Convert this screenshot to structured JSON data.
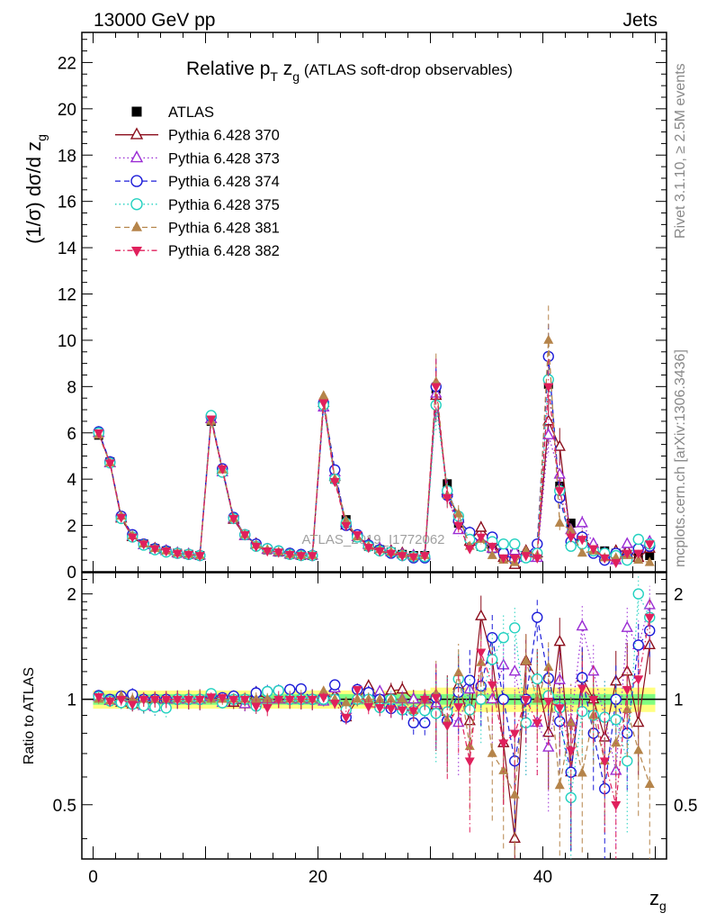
{
  "header": {
    "energy_label": "13000 GeV pp",
    "category_label": "Jets"
  },
  "side_texts": {
    "rivet": "Rivet 3.1.10, ≥ 2.5M events",
    "mcplots": "mcplots.cern.ch [arXiv:1306.3436]"
  },
  "chart_data": [
    {
      "panel": "main",
      "type": "line",
      "title_main": "Relative p",
      "title_sub_T": "T",
      "title_mid": " z",
      "title_sub_g": "g",
      "title_paren": " (ATLAS soft-drop observables)",
      "ylabel": "(1/σ) dσ/d z",
      "ylabel_sub": "g",
      "watermark": "ATLAS_2019_I1772062",
      "ylim": [
        0,
        23.3
      ],
      "xlim": [
        -1,
        51
      ],
      "grid": false,
      "legend_placement": "top-left",
      "y_ticks": [
        0,
        2,
        4,
        6,
        8,
        10,
        12,
        14,
        16,
        18,
        20,
        22
      ],
      "x": [
        0.5,
        1.5,
        2.5,
        3.5,
        4.5,
        5.5,
        6.5,
        7.5,
        8.5,
        9.5,
        10.5,
        11.5,
        12.5,
        13.5,
        14.5,
        15.5,
        16.5,
        17.5,
        18.5,
        19.5,
        20.5,
        21.5,
        22.5,
        23.5,
        24.5,
        25.5,
        26.5,
        27.5,
        28.5,
        29.5,
        30.5,
        31.5,
        32.5,
        33.5,
        34.5,
        35.5,
        36.5,
        37.5,
        38.5,
        39.5,
        40.5,
        41.5,
        42.5,
        43.5,
        44.5,
        45.5,
        46.5,
        47.5,
        48.5,
        49.5
      ],
      "series": [
        {
          "name": "ATLAS",
          "color": "#000000",
          "marker": "square-filled",
          "dash": "none",
          "values": [
            5.9,
            4.75,
            2.35,
            1.55,
            1.2,
            1.0,
            0.9,
            0.8,
            0.75,
            0.7,
            6.5,
            4.4,
            2.3,
            1.6,
            1.15,
            0.95,
            0.85,
            0.75,
            0.7,
            0.7,
            7.2,
            4.0,
            2.25,
            1.5,
            1.1,
            0.95,
            0.85,
            0.75,
            0.7,
            0.7,
            7.9,
            3.8,
            2.1,
            1.5,
            1.1,
            1.0,
            0.8,
            0.75,
            0.7,
            0.7,
            8.1,
            3.7,
            2.1,
            1.3,
            1.0,
            0.9,
            0.8,
            0.75,
            0.7,
            0.7
          ]
        },
        {
          "name": "Pythia 6.428 370",
          "color": "#8b0d1c",
          "marker": "triangle-open",
          "dash": "none",
          "values": [
            6.0,
            4.7,
            2.3,
            1.5,
            1.15,
            1.0,
            0.9,
            0.8,
            0.75,
            0.7,
            6.6,
            4.4,
            2.25,
            1.55,
            1.2,
            0.95,
            0.85,
            0.75,
            0.7,
            0.7,
            7.3,
            4.1,
            2.0,
            1.5,
            1.2,
            0.95,
            0.9,
            0.8,
            0.7,
            0.7,
            7.6,
            3.5,
            2.3,
            1.3,
            1.9,
            1.3,
            0.6,
            0.3,
            0.9,
            0.8,
            6.5,
            5.4,
            1.3,
            1.5,
            1.0,
            0.7,
            0.9,
            0.9,
            0.6,
            1.0
          ]
        },
        {
          "name": "Pythia 6.428 373",
          "color": "#9a2bd4",
          "marker": "triangle-open",
          "dash": "dot",
          "values": [
            6.0,
            4.7,
            2.35,
            1.55,
            1.15,
            0.95,
            0.9,
            0.8,
            0.75,
            0.7,
            6.6,
            4.3,
            2.3,
            1.55,
            1.15,
            0.95,
            0.85,
            0.75,
            0.7,
            0.7,
            7.1,
            4.3,
            2.1,
            1.5,
            1.15,
            1.0,
            0.85,
            0.75,
            0.7,
            0.7,
            7.7,
            3.4,
            1.8,
            1.6,
            1.2,
            1.0,
            1.0,
            0.9,
            0.6,
            0.6,
            5.9,
            4.2,
            1.8,
            2.1,
            1.2,
            0.8,
            0.5,
            1.2,
            1.0,
            1.3
          ]
        },
        {
          "name": "Pythia 6.428 374",
          "color": "#1c1cd8",
          "marker": "circle-open",
          "dash": "dash",
          "values": [
            6.05,
            4.75,
            2.4,
            1.6,
            1.2,
            1.0,
            0.9,
            0.8,
            0.75,
            0.7,
            6.7,
            4.45,
            2.35,
            1.6,
            1.2,
            1.0,
            0.9,
            0.8,
            0.75,
            0.7,
            7.3,
            4.4,
            2.0,
            1.6,
            1.15,
            0.95,
            0.8,
            0.7,
            0.6,
            0.6,
            8.0,
            3.3,
            2.2,
            1.7,
            1.2,
            1.5,
            0.8,
            0.5,
            0.7,
            1.2,
            9.3,
            3.2,
            1.3,
            1.5,
            0.8,
            0.5,
            0.8,
            0.6,
            1.0,
            1.1
          ]
        },
        {
          "name": "Pythia 6.428 375",
          "color": "#22d1c0",
          "marker": "circle-open",
          "dash": "dot",
          "values": [
            6.0,
            4.7,
            2.3,
            1.5,
            1.15,
            0.95,
            0.85,
            0.8,
            0.75,
            0.7,
            6.75,
            4.3,
            2.3,
            1.6,
            1.1,
            1.0,
            0.9,
            0.75,
            0.7,
            0.7,
            7.2,
            4.0,
            2.1,
            1.5,
            1.1,
            0.9,
            0.85,
            0.7,
            0.65,
            0.65,
            7.2,
            3.5,
            2.4,
            1.4,
            1.1,
            1.3,
            1.2,
            1.2,
            0.6,
            0.8,
            8.3,
            3.5,
            1.1,
            1.2,
            0.9,
            0.8,
            0.7,
            0.5,
            1.4,
            1.2
          ]
        },
        {
          "name": "Pythia 6.428 381",
          "color": "#b5844a",
          "marker": "triangle-filled",
          "dash": "dash",
          "values": [
            5.9,
            4.7,
            2.4,
            1.55,
            1.2,
            1.0,
            0.9,
            0.8,
            0.75,
            0.7,
            6.5,
            4.4,
            2.3,
            1.6,
            1.15,
            0.95,
            0.85,
            0.75,
            0.7,
            0.7,
            7.6,
            4.0,
            2.2,
            1.5,
            1.1,
            0.95,
            0.85,
            0.75,
            0.65,
            0.7,
            8.2,
            3.3,
            2.5,
            1.1,
            1.4,
            0.7,
            0.5,
            0.4,
            0.9,
            0.7,
            10.0,
            2.1,
            1.8,
            0.8,
            0.9,
            0.6,
            0.6,
            0.7,
            0.5,
            0.4
          ]
        },
        {
          "name": "Pythia 6.428 382",
          "color": "#e0205c",
          "marker": "triangle-down-filled",
          "dash": "dashdot",
          "values": [
            6.0,
            4.7,
            2.35,
            1.5,
            1.2,
            1.0,
            0.9,
            0.8,
            0.75,
            0.7,
            6.6,
            4.45,
            2.3,
            1.6,
            1.1,
            0.9,
            0.85,
            0.75,
            0.7,
            0.7,
            7.3,
            3.9,
            2.0,
            1.6,
            1.05,
            0.9,
            0.8,
            0.7,
            0.65,
            0.7,
            8.0,
            3.2,
            2.0,
            1.0,
            1.5,
            1.1,
            0.6,
            0.6,
            0.7,
            0.6,
            8.0,
            3.5,
            1.5,
            1.4,
            1.0,
            0.6,
            0.4,
            0.8,
            0.8,
            1.2
          ]
        }
      ]
    },
    {
      "panel": "ratio",
      "type": "line",
      "ylabel": "Ratio to ATLAS",
      "xlabel": "z",
      "xlabel_sub": "g",
      "ylim": [
        0.35,
        2.3
      ],
      "xlim": [
        -1,
        51
      ],
      "grid": false,
      "reference_line": 1,
      "y_ticks_left": [
        "0.5",
        "1",
        "2"
      ],
      "y_ticks_right": [
        "0.5",
        "1",
        "2"
      ],
      "y_tick_values": [
        0.5,
        1,
        2
      ],
      "x_ticks": [
        0,
        20,
        40
      ],
      "x_tick_labels": [
        "0",
        "20",
        "40"
      ],
      "data_band_colors": [
        "#ffff80",
        "#80ff80"
      ],
      "note": "Pythia ratios to ATLAS per bin; series order matches the main panel"
    }
  ]
}
